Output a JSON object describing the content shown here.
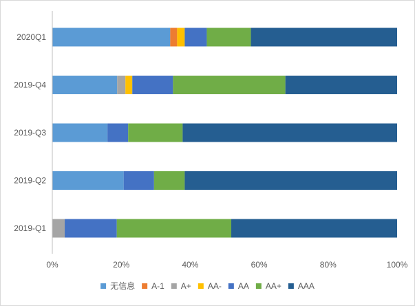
{
  "chart_data": {
    "type": "bar",
    "orientation": "horizontal",
    "stacked": "percent",
    "title": "",
    "xlabel": "",
    "ylabel": "",
    "xlim": [
      0,
      100
    ],
    "x_ticks": [
      "0%",
      "20%",
      "40%",
      "60%",
      "80%",
      "100%"
    ],
    "categories": [
      "2020Q1",
      "2019-Q4",
      "2019-Q3",
      "2019-Q2",
      "2019-Q1"
    ],
    "grid": false,
    "legend_position": "bottom",
    "series": [
      {
        "name": "无信息",
        "color": "#5b9bd5",
        "values": [
          34.2,
          18.8,
          16.0,
          20.7,
          0
        ]
      },
      {
        "name": "A-1",
        "color": "#ed7d31",
        "values": [
          2.0,
          0,
          0,
          0,
          0
        ]
      },
      {
        "name": "A+",
        "color": "#a5a5a5",
        "values": [
          0,
          2.4,
          0,
          0,
          3.6
        ]
      },
      {
        "name": "AA-",
        "color": "#ffc000",
        "values": [
          2.2,
          2.0,
          0,
          0,
          0
        ]
      },
      {
        "name": "AA",
        "color": "#4472c4",
        "values": [
          6.4,
          11.8,
          6.0,
          8.8,
          15.1
        ]
      },
      {
        "name": "AA+",
        "color": "#70ad47",
        "values": [
          12.8,
          32.6,
          15.8,
          8.9,
          33.2
        ]
      },
      {
        "name": "AAA",
        "color": "#255e91",
        "values": [
          42.4,
          32.4,
          62.2,
          61.6,
          48.1
        ]
      }
    ]
  }
}
